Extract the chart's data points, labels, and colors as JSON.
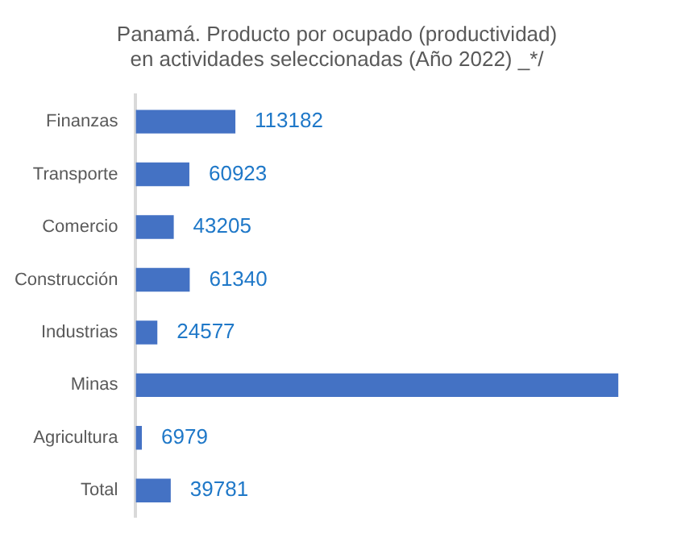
{
  "chart_data": {
    "type": "bar",
    "orientation": "horizontal",
    "title": "Panamá. Producto por ocupado (productividad) en actividades seleccionadas (Año 2022) _*/",
    "categories": [
      "Finanzas",
      "Transporte",
      "Comercio",
      "Construcción",
      "Industrias",
      "Minas",
      "Agricultura",
      "Total"
    ],
    "values": [
      113182,
      60923,
      43205,
      61340,
      24577,
      548000,
      6979,
      39781
    ],
    "value_labels": [
      "113182",
      "60923",
      "43205",
      "61340",
      "24577",
      null,
      "6979",
      "39781"
    ],
    "color": "#4472c4",
    "legend": false
  }
}
